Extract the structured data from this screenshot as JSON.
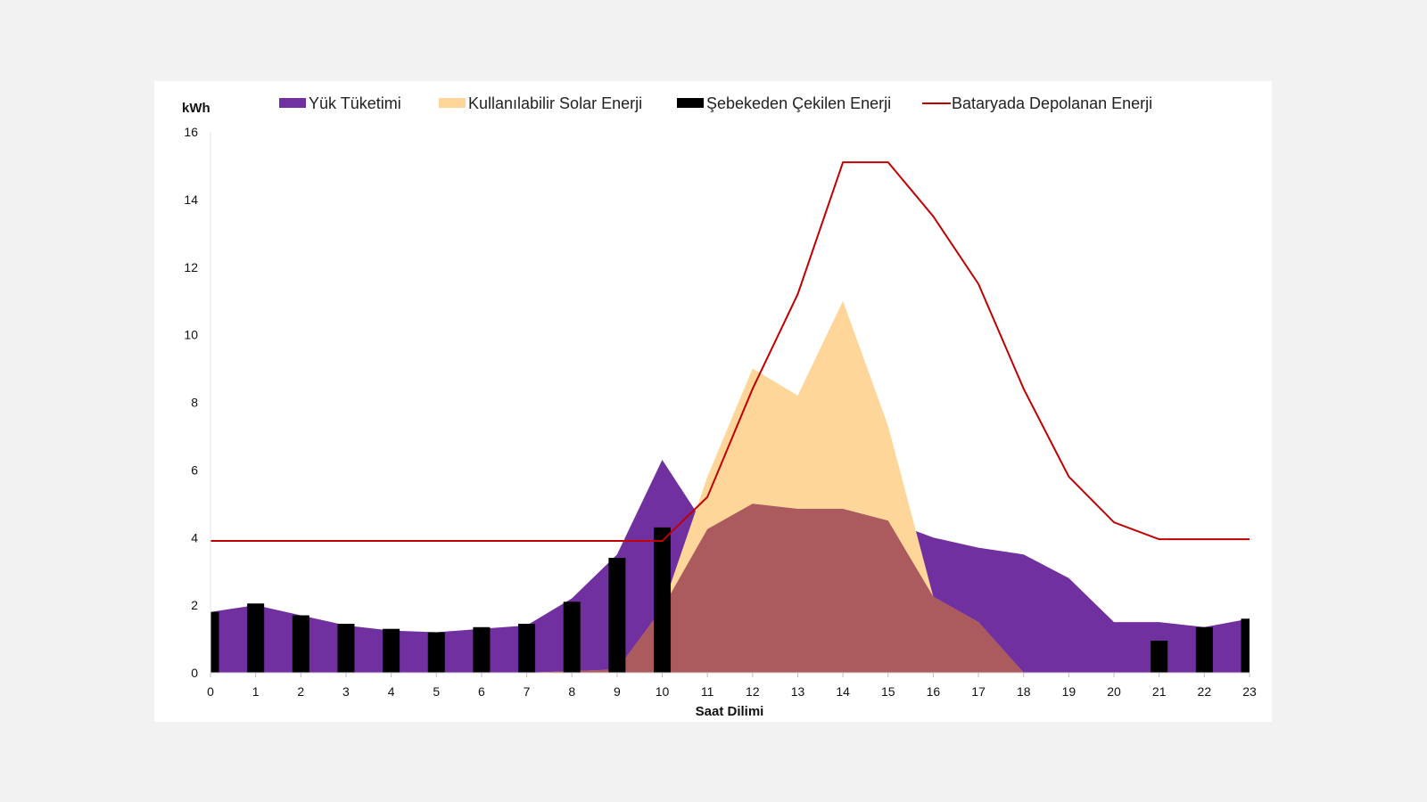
{
  "chart_data": {
    "type": "area",
    "title": "",
    "ylabel": "kWh",
    "xlabel": "Saat Dilimi",
    "ylim": [
      0,
      16
    ],
    "yticks": [
      0,
      2,
      4,
      6,
      8,
      10,
      12,
      14,
      16
    ],
    "categories": [
      "0",
      "1",
      "2",
      "3",
      "4",
      "5",
      "6",
      "7",
      "8",
      "9",
      "10",
      "11",
      "12",
      "13",
      "14",
      "15",
      "16",
      "17",
      "18",
      "19",
      "20",
      "21",
      "22",
      "23"
    ],
    "legend_position": "top",
    "grid": false,
    "series": [
      {
        "name": "Yük Tüketimi",
        "kind": "area",
        "color": "#7030a0",
        "values": [
          1.8,
          2.0,
          1.7,
          1.4,
          1.25,
          1.2,
          1.3,
          1.4,
          2.2,
          3.5,
          6.3,
          4.25,
          5.0,
          4.85,
          4.85,
          4.5,
          4.0,
          3.7,
          3.5,
          2.8,
          1.5,
          1.5,
          1.35,
          1.6
        ]
      },
      {
        "name": "Kullanılabilir Solar Enerji",
        "kind": "area",
        "color": "#ffd699",
        "values": [
          0,
          0,
          0,
          0,
          0,
          0,
          0,
          0,
          0.05,
          0.1,
          1.9,
          5.8,
          9.0,
          8.2,
          11.0,
          7.3,
          2.25,
          1.5,
          0,
          0,
          0,
          0,
          0,
          0
        ]
      },
      {
        "name": "Şebekeden Çekilen Enerji",
        "kind": "bar",
        "color": "#000000",
        "values": [
          1.8,
          2.05,
          1.7,
          1.45,
          1.3,
          1.2,
          1.35,
          1.45,
          2.1,
          3.4,
          4.3,
          0,
          0,
          0,
          0,
          0,
          0,
          0,
          0,
          0,
          0,
          0.95,
          1.35,
          1.6
        ]
      },
      {
        "name": "Bataryada Depolanan Enerji",
        "kind": "line",
        "color": "#c00000",
        "values": [
          3.9,
          3.9,
          3.9,
          3.9,
          3.9,
          3.9,
          3.9,
          3.9,
          3.9,
          3.9,
          3.9,
          5.2,
          8.4,
          11.2,
          15.1,
          15.1,
          13.5,
          11.5,
          8.4,
          5.8,
          4.45,
          3.95,
          3.95,
          3.95
        ]
      }
    ],
    "overlap_color": "#ab5a5e"
  }
}
